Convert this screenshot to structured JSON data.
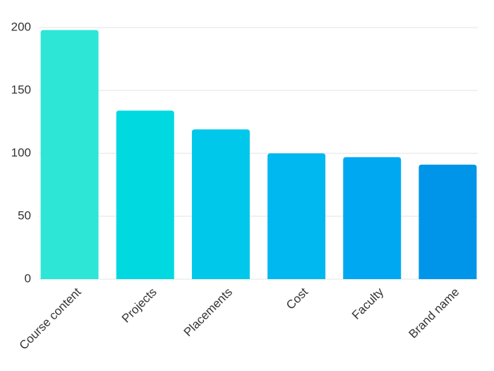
{
  "chart_data": {
    "type": "bar",
    "categories": [
      "Course content",
      "Projects",
      "Placements",
      "Cost",
      "Faculty",
      "Brand name"
    ],
    "values": [
      198,
      134,
      119,
      100,
      97,
      91
    ],
    "colors": [
      "#2ee6d6",
      "#00d9e0",
      "#00c8ea",
      "#00b8f0",
      "#00a8f2",
      "#0095e8"
    ],
    "ylim": [
      0,
      200
    ],
    "yticks": [
      0,
      50,
      100,
      150,
      200
    ],
    "grid": true
  }
}
